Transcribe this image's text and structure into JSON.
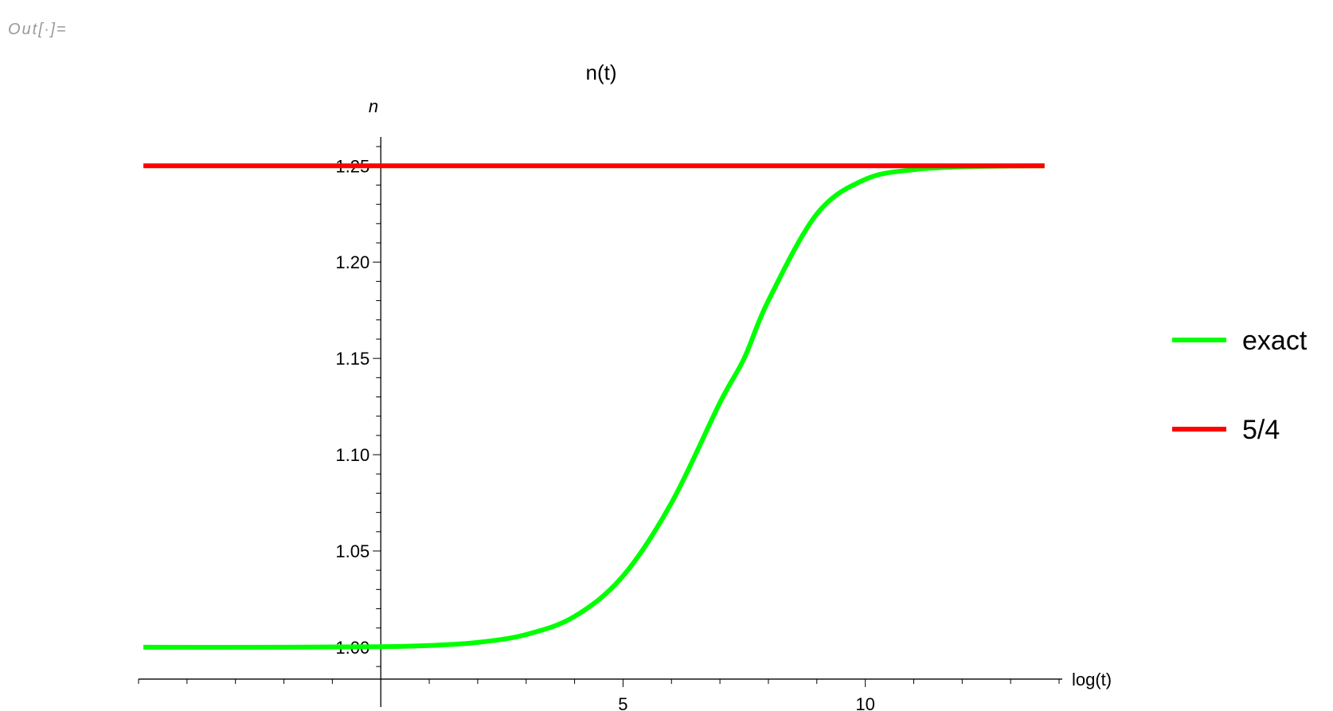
{
  "cell_label": "Out[∙]=",
  "chart_data": {
    "type": "line",
    "title": "n(t)",
    "xlabel": "log(t)",
    "ylabel": "n",
    "xlim": [
      -5,
      14
    ],
    "ylim": [
      0.9855,
      1.265
    ],
    "x_ticks": [
      5,
      10
    ],
    "y_ticks": [
      1.0,
      1.05,
      1.1,
      1.15,
      1.2,
      1.25
    ],
    "y_tick_labels": [
      "1.00",
      "1.05",
      "1.10",
      "1.15",
      "1.20",
      "1.25"
    ],
    "legend_position": "right",
    "series": [
      {
        "name": "exact",
        "color": "#00ff00",
        "x": [
          -4.9,
          -2,
          0,
          1,
          2,
          3,
          4,
          5,
          6,
          7,
          7.5,
          8,
          9,
          10,
          11,
          12,
          13,
          13.7
        ],
        "y": [
          1.0,
          1.0,
          1.0003,
          1.0009,
          1.0025,
          1.0066,
          1.016,
          1.037,
          1.075,
          1.127,
          1.15,
          1.18,
          1.225,
          1.243,
          1.248,
          1.2495,
          1.2499,
          1.25
        ]
      },
      {
        "name": "5/4",
        "color": "#ff0000",
        "x": [
          -4.9,
          13.7
        ],
        "y": [
          1.25,
          1.25
        ]
      }
    ]
  }
}
